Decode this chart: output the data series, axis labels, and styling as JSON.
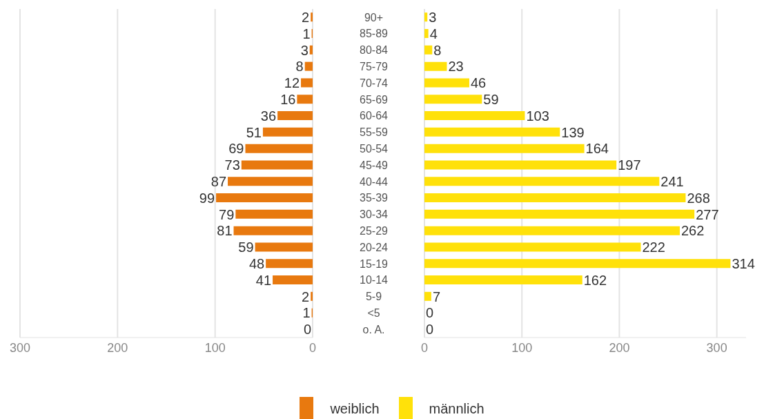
{
  "chart_data": [
    {
      "type": "bar",
      "orientation": "horizontal",
      "categories": [
        null,
        null,
        null,
        null,
        null,
        null,
        null,
        null,
        null,
        null,
        null,
        null,
        null,
        null,
        null,
        null,
        null,
        null,
        null,
        null
      ],
      "series": [
        {
          "name": "weiblich",
          "color": "#e8790f",
          "values": [
            2,
            1,
            3,
            8,
            12,
            16,
            36,
            51,
            69,
            73,
            87,
            99,
            79,
            81,
            59,
            48,
            41,
            2,
            1,
            0
          ]
        }
      ],
      "xlim": [
        300,
        0
      ],
      "xticks": [
        300,
        200,
        100,
        0
      ],
      "grid": "x",
      "data_labels": true,
      "tick_labels": "x",
      "legend": "bottom"
    },
    {
      "type": "bar",
      "orientation": "horizontal",
      "categories": [
        "90+",
        "85-89",
        "80-84",
        "75-79",
        "70-74",
        "65-69",
        "60-64",
        "55-59",
        "50-54",
        "45-49",
        "40-44",
        "35-39",
        "30-34",
        "25-29",
        "20-24",
        "15-19",
        "10-14",
        "5-9",
        "<5",
        "o. A."
      ],
      "series": [
        {
          "name": "männlich",
          "color": "#ffe10a",
          "values": [
            3,
            4,
            8,
            23,
            46,
            59,
            103,
            139,
            164,
            197,
            241,
            268,
            277,
            262,
            222,
            314,
            162,
            7,
            0,
            0
          ]
        }
      ],
      "xlim": [
        0,
        330
      ],
      "xticks": [
        0,
        100,
        200,
        300
      ],
      "grid": "x",
      "data_labels": true,
      "legend": "bottom"
    }
  ]
}
